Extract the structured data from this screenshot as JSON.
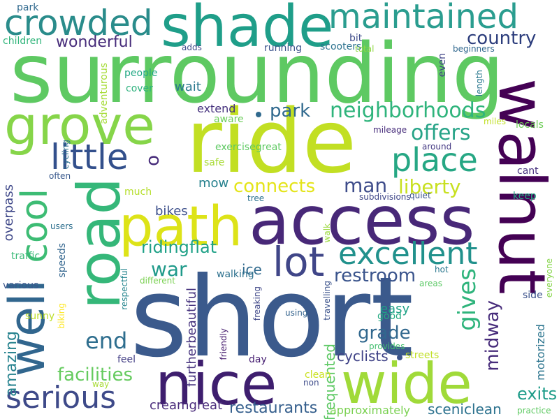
{
  "word_cloud": {
    "words": [
      {
        "text": "surrounding",
        "color": "#5ec962"
      },
      {
        "text": "short",
        "color": "#3b5a8c"
      },
      {
        "text": "access",
        "color": "#482878"
      },
      {
        "text": "ride",
        "color": "#c2df23"
      },
      {
        "text": "walnut",
        "color": "#440154"
      },
      {
        "text": "road",
        "color": "#35b779"
      },
      {
        "text": "shade",
        "color": "#1f9e89"
      },
      {
        "text": "nice",
        "color": "#3e1e6e"
      },
      {
        "text": "wide",
        "color": "#a0da39"
      },
      {
        "text": "path",
        "color": "#dde318"
      },
      {
        "text": "grove",
        "color": "#86d549"
      },
      {
        "text": "maintained",
        "color": "#2a9d8f"
      },
      {
        "text": "crowded",
        "color": "#2a8c8b"
      },
      {
        "text": "well",
        "color": "#31668e"
      },
      {
        "text": "cool",
        "color": "#3dbc74"
      },
      {
        "text": "lot",
        "color": "#404688"
      },
      {
        "text": "little",
        "color": "#33508c"
      },
      {
        "text": "place",
        "color": "#26a784"
      },
      {
        "text": "excellent",
        "color": "#21918c"
      },
      {
        "text": "serious",
        "color": "#3e4a89"
      },
      {
        "text": "neighborhoods",
        "color": "#2fb47c"
      },
      {
        "text": "offers",
        "color": "#26a387"
      },
      {
        "text": "country",
        "color": "#2c3d7c"
      },
      {
        "text": "wonderful",
        "color": "#472c7a"
      },
      {
        "text": "connects",
        "color": "#e4e419"
      },
      {
        "text": "liberty",
        "color": "#c8e020"
      },
      {
        "text": "man",
        "color": "#3e4c8a"
      },
      {
        "text": "park",
        "color": "#30698e"
      },
      {
        "text": "war",
        "color": "#1f9a8a"
      },
      {
        "text": "ridingflat",
        "color": "#1fa187"
      },
      {
        "text": "end",
        "color": "#2e6e8e"
      },
      {
        "text": "gives",
        "color": "#2fb47c"
      },
      {
        "text": "restroom",
        "color": "#3a548c"
      },
      {
        "text": "grade",
        "color": "#31688e"
      },
      {
        "text": "midway",
        "color": "#472c7b"
      },
      {
        "text": "facilities",
        "color": "#65cb5e"
      },
      {
        "text": "amazing",
        "color": "#26828e"
      },
      {
        "text": "furtherbeautiful",
        "color": "#46337e"
      },
      {
        "text": "restaurants",
        "color": "#355f8d"
      },
      {
        "text": "exits",
        "color": "#1e9c89"
      },
      {
        "text": "sceniclean",
        "color": "#2c728e"
      },
      {
        "text": "cyclists",
        "color": "#404387"
      },
      {
        "text": "creamgreat",
        "color": "#4a2c7b"
      },
      {
        "text": "frequented",
        "color": "#5cc863"
      },
      {
        "text": "approximately",
        "color": "#7ad151"
      },
      {
        "text": "motorized",
        "color": "#2b748e"
      },
      {
        "text": "o",
        "color": "#472c7a"
      },
      {
        "text": "overpass",
        "color": "#3f4889"
      },
      {
        "text": "ice",
        "color": "#306a8e"
      },
      {
        "text": "easy",
        "color": "#1fa287"
      },
      {
        "text": "mow",
        "color": "#26818e"
      },
      {
        "text": "bikes",
        "color": "#3c4f8a"
      },
      {
        "text": "wait",
        "color": "#2a788e"
      },
      {
        "text": "extend",
        "color": "#46327e"
      },
      {
        "text": "park",
        "color": "#30698e"
      },
      {
        "text": "children",
        "color": "#31b57b"
      },
      {
        "text": "running",
        "color": "#3b528b"
      },
      {
        "text": "scooters",
        "color": "#2c728e"
      },
      {
        "text": "bit",
        "color": "#3e4c8a"
      },
      {
        "text": "total",
        "color": "#8fd744"
      },
      {
        "text": "adds",
        "color": "#3e4989"
      },
      {
        "text": "beginners",
        "color": "#31688e"
      },
      {
        "text": "adventurous",
        "color": "#a5db36"
      },
      {
        "text": "people",
        "color": "#22a884"
      },
      {
        "text": "cover",
        "color": "#2db27d"
      },
      {
        "text": "even",
        "color": "#414487"
      },
      {
        "text": "length",
        "color": "#2a788e"
      },
      {
        "text": "aware",
        "color": "#6ccd5a"
      },
      {
        "text": "miles",
        "color": "#c0df25"
      },
      {
        "text": "locals",
        "color": "#6ece58"
      },
      {
        "text": "cycling",
        "color": "#2d708e"
      },
      {
        "text": "mileage",
        "color": "#472d7b"
      },
      {
        "text": "around",
        "color": "#443983"
      },
      {
        "text": "exercisegreat",
        "color": "#5ec962"
      },
      {
        "text": "safe",
        "color": "#a8db34"
      },
      {
        "text": "cant",
        "color": "#46307e"
      },
      {
        "text": "often",
        "color": "#38588c"
      },
      {
        "text": "much",
        "color": "#b5de2b"
      },
      {
        "text": "keep",
        "color": "#24aa83"
      },
      {
        "text": "tree",
        "color": "#2c728e"
      },
      {
        "text": "subdivisions",
        "color": "#3f4788"
      },
      {
        "text": "quiet",
        "color": "#3a538b"
      },
      {
        "text": "users",
        "color": "#2e6f8e"
      },
      {
        "text": "walk",
        "color": "#9bd93c"
      },
      {
        "text": "traffic",
        "color": "#39b977"
      },
      {
        "text": "speeds",
        "color": "#32658e"
      },
      {
        "text": "walking",
        "color": "#2d718e"
      },
      {
        "text": "hot",
        "color": "#2a778e"
      },
      {
        "text": "everyone",
        "color": "#86d549"
      },
      {
        "text": "various",
        "color": "#39558c"
      },
      {
        "text": "biking",
        "color": "#fde725"
      },
      {
        "text": "respectful",
        "color": "#25858e"
      },
      {
        "text": "different",
        "color": "#7ad151"
      },
      {
        "text": "freaking",
        "color": "#3f4788"
      },
      {
        "text": "travelling",
        "color": "#3b528b"
      },
      {
        "text": "areas",
        "color": "#5ac864"
      },
      {
        "text": "side",
        "color": "#3b518b"
      },
      {
        "text": "using",
        "color": "#33638d"
      },
      {
        "text": "good",
        "color": "#25ab82"
      },
      {
        "text": "sunny",
        "color": "#bddf26"
      },
      {
        "text": "feel",
        "color": "#433e85"
      },
      {
        "text": "friendly",
        "color": "#481f70"
      },
      {
        "text": "provides",
        "color": "#45bf70"
      },
      {
        "text": "streets",
        "color": "#c0df25"
      },
      {
        "text": "day",
        "color": "#482173"
      },
      {
        "text": "clean",
        "color": "#cae11f"
      },
      {
        "text": "non",
        "color": "#3e4c8a"
      },
      {
        "text": "way",
        "color": "#a8db34"
      },
      {
        "text": "practice",
        "color": "#5ec962"
      },
      {
        "text": "without",
        "color": "#472a7a"
      }
    ]
  }
}
